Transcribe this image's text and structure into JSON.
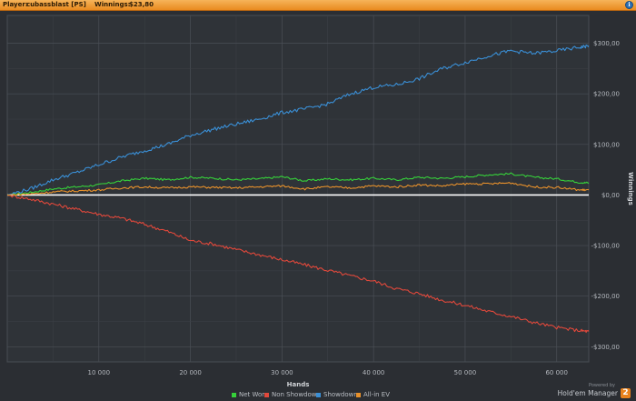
{
  "header": {
    "player_label": "Player:",
    "player_name": "cubassblast [PS]",
    "winnings_label": "Winnings:",
    "winnings_value": "$23,80",
    "help_icon": "help-icon"
  },
  "legend": [
    {
      "label": "Net Won",
      "color": "#36d13a"
    },
    {
      "label": "Non Showdown",
      "color": "#e0483b"
    },
    {
      "label": "Showdown",
      "color": "#3a8fd6"
    },
    {
      "label": "All-in EV",
      "color": "#e8912b"
    }
  ],
  "brand": {
    "powered": "Powered by",
    "name": "Hold'em Manager",
    "badge": "2"
  },
  "chart_data": {
    "type": "line",
    "xlabel": "Hands",
    "ylabel": "Winnings",
    "xlim": [
      0,
      63500
    ],
    "ylim": [
      -330,
      355
    ],
    "x_ticks": [
      10000,
      20000,
      30000,
      40000,
      50000,
      60000
    ],
    "x_tick_labels": [
      "10 000",
      "20 000",
      "30 000",
      "40 000",
      "50 000",
      "60 000"
    ],
    "y_ticks": [
      -300,
      -200,
      -100,
      0,
      100,
      200,
      300
    ],
    "y_tick_labels": [
      "-$300,00",
      "-$200,00",
      "-$100,00",
      "$0,00",
      "$100,00",
      "$200,00",
      "$300,00"
    ],
    "grid": true,
    "legend_position": "bottom",
    "x": [
      0,
      2500,
      5000,
      7500,
      10000,
      12500,
      15000,
      17500,
      20000,
      22500,
      25000,
      27500,
      30000,
      32500,
      35000,
      37500,
      40000,
      42500,
      45000,
      47500,
      50000,
      52500,
      55000,
      57500,
      60000,
      62500,
      63500
    ],
    "series": [
      {
        "name": "Net Won",
        "color": "#36d13a",
        "values": [
          0,
          5,
          12,
          16,
          20,
          28,
          33,
          30,
          35,
          33,
          30,
          32,
          36,
          28,
          32,
          30,
          33,
          30,
          35,
          33,
          36,
          40,
          42,
          35,
          32,
          25,
          24
        ]
      },
      {
        "name": "Non Showdown",
        "color": "#e0483b",
        "values": [
          0,
          -8,
          -18,
          -28,
          -38,
          -46,
          -58,
          -72,
          -90,
          -97,
          -108,
          -118,
          -128,
          -138,
          -149,
          -160,
          -170,
          -185,
          -195,
          -208,
          -218,
          -230,
          -240,
          -252,
          -262,
          -268,
          -270
        ]
      },
      {
        "name": "Showdown",
        "color": "#3a8fd6",
        "values": [
          0,
          12,
          30,
          44,
          60,
          75,
          88,
          100,
          118,
          130,
          140,
          150,
          163,
          170,
          180,
          200,
          213,
          218,
          230,
          250,
          262,
          275,
          285,
          280,
          285,
          292,
          295
        ]
      },
      {
        "name": "All-in EV",
        "color": "#e8912b",
        "values": [
          0,
          2,
          6,
          8,
          10,
          14,
          16,
          14,
          16,
          15,
          14,
          16,
          18,
          12,
          16,
          14,
          18,
          16,
          20,
          18,
          22,
          22,
          24,
          16,
          15,
          10,
          10
        ]
      }
    ]
  }
}
